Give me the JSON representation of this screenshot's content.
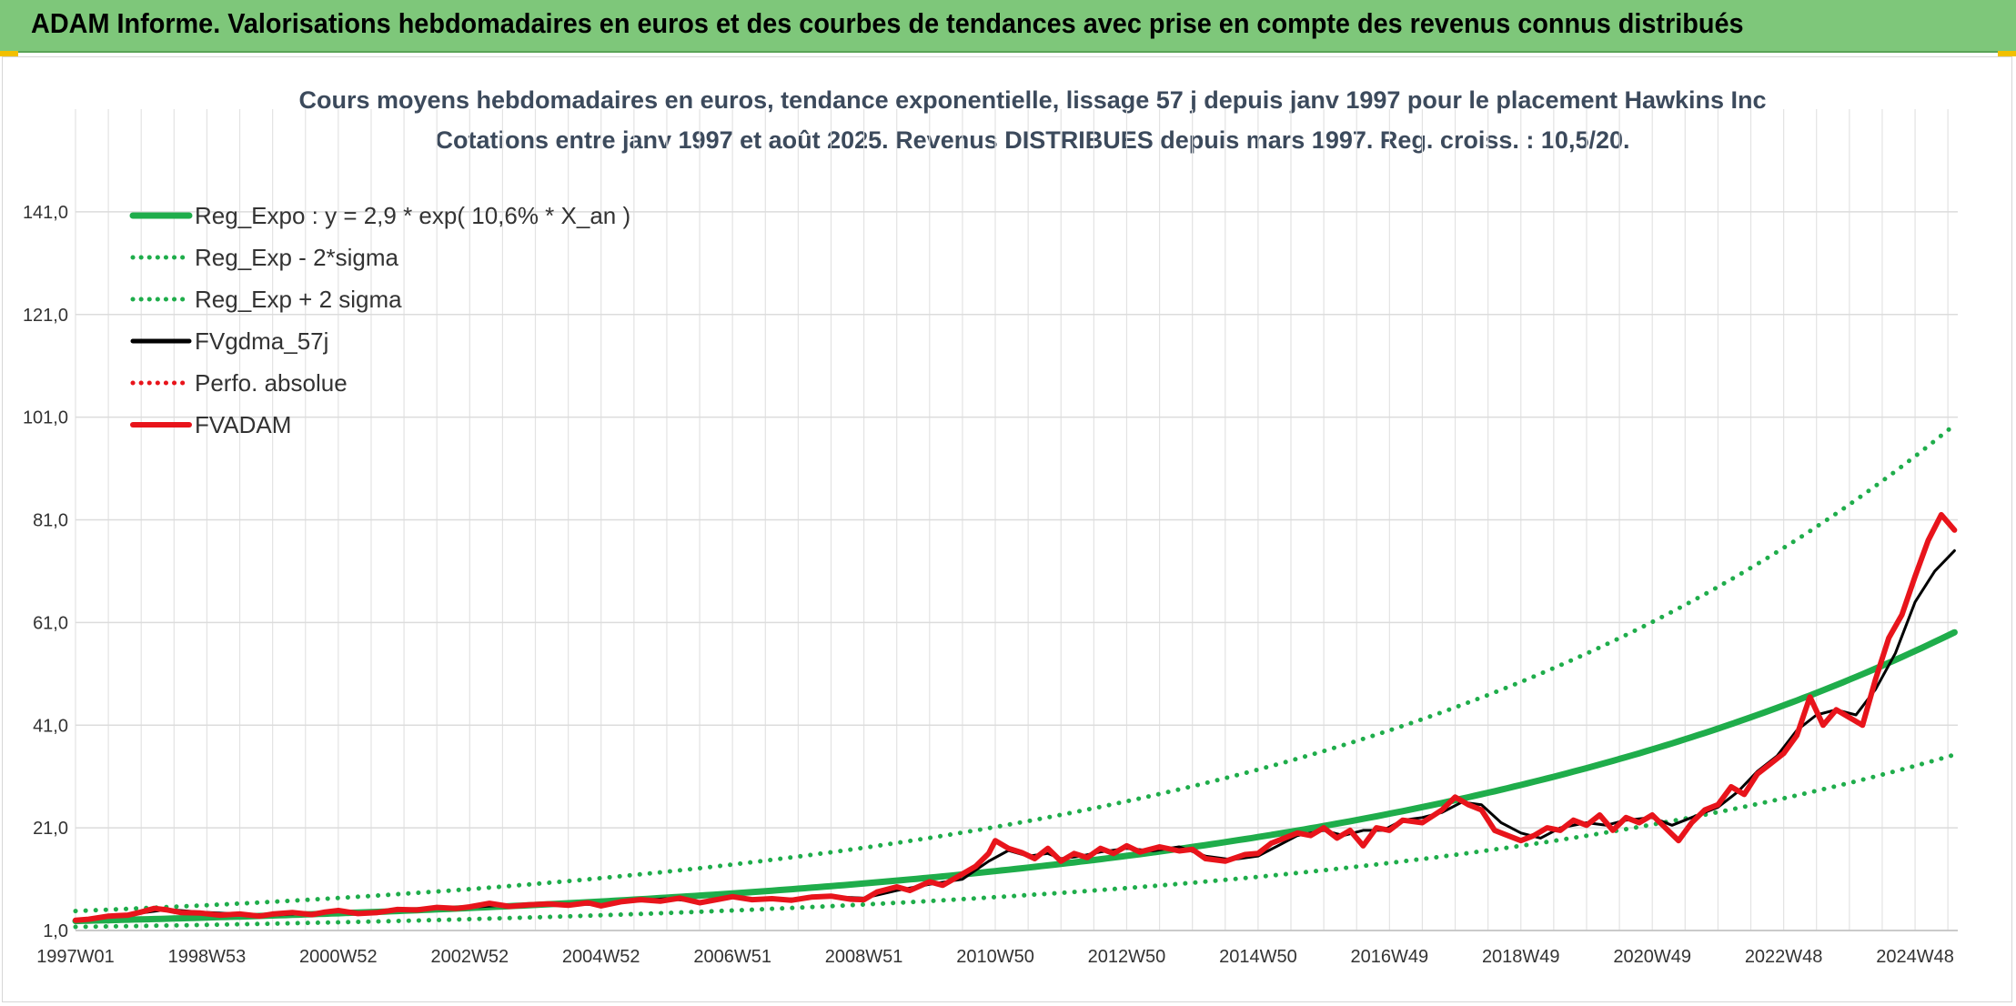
{
  "banner": {
    "title": "ADAM Informe. Valorisations hebdomadaires en euros et des courbes de tendances avec prise en compte des revenus connus distribués"
  },
  "chart_data": {
    "type": "line",
    "title": "Cours moyens hebdomadaires en euros, tendance exponentielle, lissage 57 j depuis janv 1997 pour le placement Hawkins Inc",
    "subtitle": "Cotations entre janv 1997 et août 2025. Revenus DISTRIBUES depuis mars 1997. Reg. croiss. : 10,5/20.",
    "xlabel": "",
    "ylabel": "",
    "x_ticks": [
      {
        "label": "1997W01",
        "year": 1997.0
      },
      {
        "label": "1998W53",
        "year": 1999.0
      },
      {
        "label": "2000W52",
        "year": 2001.0
      },
      {
        "label": "2002W52",
        "year": 2003.0
      },
      {
        "label": "2004W52",
        "year": 2005.0
      },
      {
        "label": "2006W51",
        "year": 2007.0
      },
      {
        "label": "2008W51",
        "year": 2009.0
      },
      {
        "label": "2010W50",
        "year": 2011.0
      },
      {
        "label": "2012W50",
        "year": 2013.0
      },
      {
        "label": "2014W50",
        "year": 2015.0
      },
      {
        "label": "2016W49",
        "year": 2017.0
      },
      {
        "label": "2018W49",
        "year": 2019.0
      },
      {
        "label": "2020W49",
        "year": 2021.0
      },
      {
        "label": "2022W48",
        "year": 2023.0
      },
      {
        "label": "2024W48",
        "year": 2025.0
      }
    ],
    "x_range": [
      1997.0,
      2025.65
    ],
    "y_ticks": [
      "1,0",
      "21,0",
      "41,0",
      "61,0",
      "81,0",
      "101,0",
      "121,0",
      "141,0"
    ],
    "y_tick_values": [
      1,
      21,
      41,
      61,
      81,
      101,
      121,
      141
    ],
    "ylim": [
      1,
      161
    ],
    "grid": true,
    "legend_position": "top-left",
    "series": [
      {
        "name": "Reg_Expo : y = 2,9 * exp( 10,6% *  X_an )",
        "style": "solid",
        "color": "#1fad4b",
        "width": 7,
        "kind": "exp",
        "a": 2.85,
        "b": 0.106,
        "base_year": 1997.0
      },
      {
        "name": "Reg_Exp - 2*sigma",
        "style": "dotted",
        "color": "#1fad4b",
        "width": 5,
        "kind": "exp",
        "a": 1.7,
        "b": 0.106,
        "base_year": 1997.0
      },
      {
        "name": "Reg_Exp + 2 sigma",
        "style": "dotted",
        "color": "#1fad4b",
        "width": 5,
        "kind": "exp",
        "a": 4.8,
        "b": 0.106,
        "base_year": 1997.0
      },
      {
        "name": "FVgdma_57j",
        "style": "solid",
        "color": "#000000",
        "width": 3,
        "kind": "points",
        "points": [
          [
            1997.0,
            3.0
          ],
          [
            1997.5,
            3.6
          ],
          [
            1998.0,
            4.4
          ],
          [
            1998.4,
            5.1
          ],
          [
            1998.9,
            4.6
          ],
          [
            1999.5,
            4.2
          ],
          [
            2000.0,
            4.0
          ],
          [
            2000.5,
            4.3
          ],
          [
            2001.0,
            4.7
          ],
          [
            2001.5,
            4.4
          ],
          [
            2002.0,
            5.0
          ],
          [
            2002.5,
            5.4
          ],
          [
            2003.0,
            5.5
          ],
          [
            2003.5,
            5.9
          ],
          [
            2004.0,
            6.1
          ],
          [
            2004.5,
            6.2
          ],
          [
            2005.0,
            6.0
          ],
          [
            2005.5,
            6.8
          ],
          [
            2006.0,
            7.2
          ],
          [
            2006.5,
            6.6
          ],
          [
            2007.0,
            7.5
          ],
          [
            2007.5,
            7.0
          ],
          [
            2008.0,
            7.2
          ],
          [
            2008.5,
            7.6
          ],
          [
            2009.0,
            7.3
          ],
          [
            2009.5,
            8.8
          ],
          [
            2010.0,
            10.0
          ],
          [
            2010.5,
            11.0
          ],
          [
            2010.9,
            14.5
          ],
          [
            2011.2,
            16.6
          ],
          [
            2011.5,
            15.5
          ],
          [
            2011.8,
            16.0
          ],
          [
            2012.0,
            15.0
          ],
          [
            2012.3,
            15.5
          ],
          [
            2012.6,
            16.3
          ],
          [
            2013.0,
            17.0
          ],
          [
            2013.4,
            16.5
          ],
          [
            2013.8,
            17.3
          ],
          [
            2014.2,
            15.5
          ],
          [
            2014.6,
            14.8
          ],
          [
            2015.0,
            15.5
          ],
          [
            2015.3,
            17.5
          ],
          [
            2015.6,
            19.5
          ],
          [
            2016.0,
            20.5
          ],
          [
            2016.3,
            19.5
          ],
          [
            2016.6,
            20.5
          ],
          [
            2016.9,
            20.5
          ],
          [
            2017.2,
            22.5
          ],
          [
            2017.5,
            23.0
          ],
          [
            2017.8,
            24.0
          ],
          [
            2018.1,
            26.0
          ],
          [
            2018.4,
            25.5
          ],
          [
            2018.7,
            22.0
          ],
          [
            2019.0,
            20.0
          ],
          [
            2019.3,
            19.0
          ],
          [
            2019.6,
            21.0
          ],
          [
            2020.0,
            22.0
          ],
          [
            2020.3,
            21.5
          ],
          [
            2020.6,
            22.5
          ],
          [
            2021.0,
            23.0
          ],
          [
            2021.3,
            21.5
          ],
          [
            2021.6,
            23.0
          ],
          [
            2022.0,
            25.0
          ],
          [
            2022.3,
            28.0
          ],
          [
            2022.6,
            32.0
          ],
          [
            2022.9,
            35.0
          ],
          [
            2023.2,
            40.0
          ],
          [
            2023.5,
            43.0
          ],
          [
            2023.8,
            44.0
          ],
          [
            2024.1,
            43.0
          ],
          [
            2024.4,
            48.0
          ],
          [
            2024.7,
            55.0
          ],
          [
            2025.0,
            65.0
          ],
          [
            2025.3,
            71.0
          ],
          [
            2025.6,
            75.0
          ]
        ]
      },
      {
        "name": "Perfo. absolue",
        "style": "dotted",
        "color": "#e8141b",
        "width": 3,
        "kind": "none"
      },
      {
        "name": "FVADAM",
        "style": "solid",
        "color": "#e8141b",
        "width": 6,
        "kind": "points",
        "points": [
          [
            1997.0,
            3.0
          ],
          [
            1997.2,
            3.2
          ],
          [
            1997.5,
            3.8
          ],
          [
            1997.8,
            4.0
          ],
          [
            1998.0,
            4.6
          ],
          [
            1998.2,
            5.3
          ],
          [
            1998.4,
            5.0
          ],
          [
            1998.6,
            4.5
          ],
          [
            1998.9,
            4.4
          ],
          [
            1999.2,
            4.0
          ],
          [
            1999.5,
            4.2
          ],
          [
            1999.8,
            3.8
          ],
          [
            2000.0,
            4.2
          ],
          [
            2000.3,
            4.5
          ],
          [
            2000.6,
            4.1
          ],
          [
            2000.8,
            4.6
          ],
          [
            2001.0,
            4.9
          ],
          [
            2001.3,
            4.3
          ],
          [
            2001.6,
            4.5
          ],
          [
            2001.9,
            5.1
          ],
          [
            2002.2,
            5.0
          ],
          [
            2002.5,
            5.5
          ],
          [
            2002.8,
            5.3
          ],
          [
            2003.0,
            5.6
          ],
          [
            2003.3,
            6.3
          ],
          [
            2003.6,
            5.7
          ],
          [
            2003.9,
            6.0
          ],
          [
            2004.2,
            6.2
          ],
          [
            2004.5,
            5.9
          ],
          [
            2004.8,
            6.4
          ],
          [
            2005.0,
            5.8
          ],
          [
            2005.3,
            6.6
          ],
          [
            2005.6,
            7.0
          ],
          [
            2005.9,
            6.7
          ],
          [
            2006.2,
            7.3
          ],
          [
            2006.5,
            6.4
          ],
          [
            2006.8,
            7.1
          ],
          [
            2007.0,
            7.6
          ],
          [
            2007.3,
            7.0
          ],
          [
            2007.6,
            7.2
          ],
          [
            2007.9,
            6.9
          ],
          [
            2008.2,
            7.5
          ],
          [
            2008.5,
            7.7
          ],
          [
            2008.8,
            7.1
          ],
          [
            2009.0,
            7.0
          ],
          [
            2009.2,
            8.5
          ],
          [
            2009.5,
            9.5
          ],
          [
            2009.7,
            8.8
          ],
          [
            2010.0,
            10.5
          ],
          [
            2010.2,
            9.8
          ],
          [
            2010.5,
            12.0
          ],
          [
            2010.7,
            13.5
          ],
          [
            2010.9,
            16.0
          ],
          [
            2011.0,
            18.5
          ],
          [
            2011.2,
            17.0
          ],
          [
            2011.4,
            16.2
          ],
          [
            2011.6,
            15.0
          ],
          [
            2011.8,
            17.0
          ],
          [
            2012.0,
            14.5
          ],
          [
            2012.2,
            16.0
          ],
          [
            2012.4,
            15.2
          ],
          [
            2012.6,
            17.0
          ],
          [
            2012.8,
            16.0
          ],
          [
            2013.0,
            17.5
          ],
          [
            2013.2,
            16.3
          ],
          [
            2013.5,
            17.3
          ],
          [
            2013.8,
            16.5
          ],
          [
            2014.0,
            16.8
          ],
          [
            2014.2,
            15.0
          ],
          [
            2014.5,
            14.5
          ],
          [
            2014.8,
            15.8
          ],
          [
            2015.0,
            16.0
          ],
          [
            2015.2,
            18.0
          ],
          [
            2015.4,
            19.0
          ],
          [
            2015.6,
            20.0
          ],
          [
            2015.8,
            19.5
          ],
          [
            2016.0,
            21.0
          ],
          [
            2016.2,
            19.0
          ],
          [
            2016.4,
            20.5
          ],
          [
            2016.6,
            17.5
          ],
          [
            2016.8,
            21.0
          ],
          [
            2017.0,
            20.5
          ],
          [
            2017.2,
            22.5
          ],
          [
            2017.5,
            22.0
          ],
          [
            2017.8,
            24.5
          ],
          [
            2018.0,
            27.0
          ],
          [
            2018.2,
            25.5
          ],
          [
            2018.4,
            24.5
          ],
          [
            2018.6,
            20.5
          ],
          [
            2018.8,
            19.5
          ],
          [
            2019.0,
            18.5
          ],
          [
            2019.2,
            19.5
          ],
          [
            2019.4,
            21.0
          ],
          [
            2019.6,
            20.5
          ],
          [
            2019.8,
            22.5
          ],
          [
            2020.0,
            21.5
          ],
          [
            2020.2,
            23.5
          ],
          [
            2020.4,
            20.5
          ],
          [
            2020.6,
            23.0
          ],
          [
            2020.8,
            22.0
          ],
          [
            2021.0,
            23.5
          ],
          [
            2021.2,
            21.0
          ],
          [
            2021.4,
            18.5
          ],
          [
            2021.6,
            22.0
          ],
          [
            2021.8,
            24.5
          ],
          [
            2022.0,
            25.5
          ],
          [
            2022.2,
            29.0
          ],
          [
            2022.4,
            27.5
          ],
          [
            2022.6,
            31.5
          ],
          [
            2022.8,
            33.5
          ],
          [
            2023.0,
            35.5
          ],
          [
            2023.2,
            39.0
          ],
          [
            2023.4,
            46.5
          ],
          [
            2023.6,
            41.0
          ],
          [
            2023.8,
            44.0
          ],
          [
            2024.0,
            42.5
          ],
          [
            2024.2,
            41.0
          ],
          [
            2024.4,
            50.0
          ],
          [
            2024.6,
            58.0
          ],
          [
            2024.8,
            62.5
          ],
          [
            2025.0,
            70.0
          ],
          [
            2025.2,
            77.0
          ],
          [
            2025.4,
            82.0
          ],
          [
            2025.6,
            79.0
          ]
        ]
      }
    ]
  }
}
